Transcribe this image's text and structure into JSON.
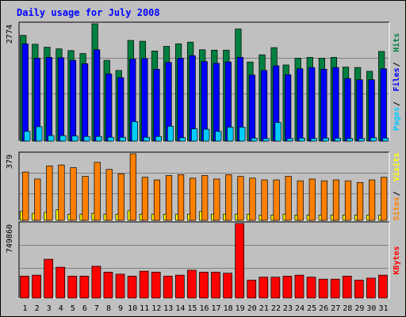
{
  "title": "Daily usage for July 2008",
  "colors": {
    "background": "#c0c0c0",
    "pages": "#00ccff",
    "files": "#0000ff",
    "hits": "#008040",
    "sites": "#ffff00",
    "visits": "#ff8000",
    "kbytes": "#ff0000",
    "weekend": "#00805c",
    "title": "#0000ff"
  },
  "chart_data": [
    {
      "type": "bar",
      "panel": "top",
      "ytick": "2774",
      "ylim": [
        0,
        2774
      ],
      "legend": [
        {
          "label": "Pages",
          "color": "#00ccff"
        },
        {
          "label": "Files",
          "color": "#0000ff"
        },
        {
          "label": "Hits",
          "color": "#008040"
        }
      ],
      "categories": [
        "1",
        "2",
        "3",
        "4",
        "5",
        "6",
        "7",
        "8",
        "9",
        "10",
        "11",
        "12",
        "13",
        "14",
        "15",
        "16",
        "17",
        "18",
        "19",
        "20",
        "21",
        "22",
        "23",
        "24",
        "25",
        "26",
        "27",
        "28",
        "29",
        "30",
        "31"
      ],
      "series": [
        {
          "name": "Hits",
          "values": [
            2500,
            2290,
            2220,
            2180,
            2140,
            2070,
            2774,
            1910,
            1670,
            2380,
            2360,
            2130,
            2240,
            2300,
            2340,
            2160,
            2150,
            2150,
            2650,
            1870,
            2040,
            2210,
            1800,
            1960,
            1980,
            1960,
            1980,
            1750,
            1740,
            1650,
            2120
          ]
        },
        {
          "name": "Files",
          "values": [
            2300,
            1960,
            1980,
            1970,
            1910,
            1830,
            2160,
            1590,
            1500,
            1940,
            1950,
            1700,
            1860,
            1960,
            2020,
            1880,
            1840,
            1870,
            1980,
            1560,
            1670,
            1780,
            1570,
            1710,
            1740,
            1700,
            1740,
            1480,
            1450,
            1450,
            1710
          ]
        },
        {
          "name": "Pages",
          "values": [
            230,
            340,
            130,
            130,
            120,
            110,
            110,
            90,
            90,
            460,
            90,
            110,
            350,
            80,
            290,
            280,
            230,
            330,
            330,
            70,
            60,
            440,
            60,
            70,
            60,
            70,
            70,
            60,
            60,
            80,
            70
          ]
        }
      ]
    },
    {
      "type": "bar",
      "panel": "middle",
      "ytick": "379",
      "ylim": [
        0,
        379
      ],
      "legend": [
        {
          "label": "Sites",
          "color": "#ff8000"
        },
        {
          "label": "Visits",
          "color": "#ffff00"
        }
      ],
      "categories": [
        "1",
        "2",
        "3",
        "4",
        "5",
        "6",
        "7",
        "8",
        "9",
        "10",
        "11",
        "12",
        "13",
        "14",
        "15",
        "16",
        "17",
        "18",
        "19",
        "20",
        "21",
        "22",
        "23",
        "24",
        "25",
        "26",
        "27",
        "28",
        "29",
        "30",
        "31"
      ],
      "series": [
        {
          "name": "Visits",
          "values": [
            50,
            40,
            45,
            60,
            35,
            35,
            40,
            35,
            35,
            55,
            35,
            35,
            35,
            35,
            35,
            50,
            35,
            35,
            35,
            35,
            30,
            30,
            35,
            30,
            30,
            30,
            30,
            30,
            30,
            30,
            30
          ]
        },
        {
          "name": "Sites",
          "values": [
            275,
            235,
            310,
            315,
            300,
            250,
            330,
            290,
            265,
            379,
            245,
            230,
            255,
            260,
            240,
            255,
            235,
            260,
            250,
            240,
            230,
            230,
            250,
            225,
            235,
            225,
            230,
            225,
            215,
            230,
            245
          ]
        }
      ]
    },
    {
      "type": "bar",
      "panel": "bottom",
      "ytick": "749860",
      "ylim": [
        0,
        749860
      ],
      "legend": [
        {
          "label": "KBytes",
          "color": "#ff0000"
        }
      ],
      "categories": [
        "1",
        "2",
        "3",
        "4",
        "5",
        "6",
        "7",
        "8",
        "9",
        "10",
        "11",
        "12",
        "13",
        "14",
        "15",
        "16",
        "17",
        "18",
        "19",
        "20",
        "21",
        "22",
        "23",
        "24",
        "25",
        "26",
        "27",
        "28",
        "29",
        "30",
        "31"
      ],
      "series": [
        {
          "name": "KBytes",
          "values": [
            220000,
            230000,
            390000,
            310000,
            220000,
            220000,
            320000,
            260000,
            240000,
            220000,
            270000,
            260000,
            220000,
            230000,
            280000,
            260000,
            260000,
            250000,
            749860,
            180000,
            210000,
            210000,
            220000,
            230000,
            210000,
            190000,
            190000,
            220000,
            180000,
            200000,
            230000
          ]
        }
      ]
    }
  ],
  "weekend_days": [
    "5",
    "6",
    "12",
    "13",
    "19",
    "20",
    "26",
    "27"
  ]
}
